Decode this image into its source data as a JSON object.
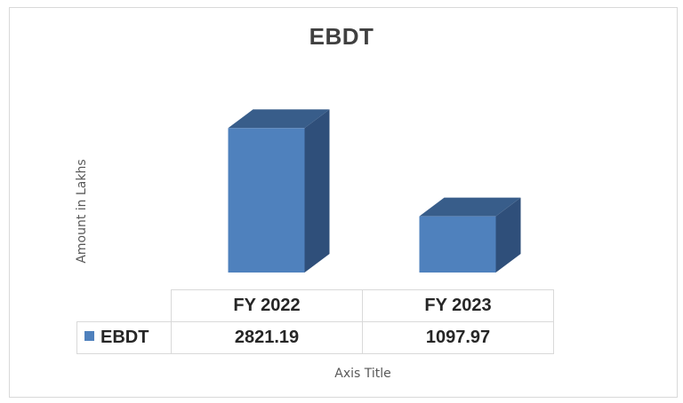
{
  "chart_data": {
    "type": "bar",
    "title": "EBDT",
    "ylabel": "Amount in Lakhs",
    "xlabel": "Axis Title",
    "categories": [
      "FY 2022",
      "FY 2023"
    ],
    "series": [
      {
        "name": "EBDT",
        "values": [
          2821.19,
          1097.97
        ]
      }
    ],
    "data_table_values": [
      "2821.19",
      "1097.97"
    ],
    "ylim": [
      0,
      3000
    ],
    "grid": false,
    "legend": "data table legend key",
    "style": "3d-column",
    "colors": {
      "front": "#4f81bd",
      "side": "#2f4f7a",
      "top": "#385d8a"
    }
  }
}
